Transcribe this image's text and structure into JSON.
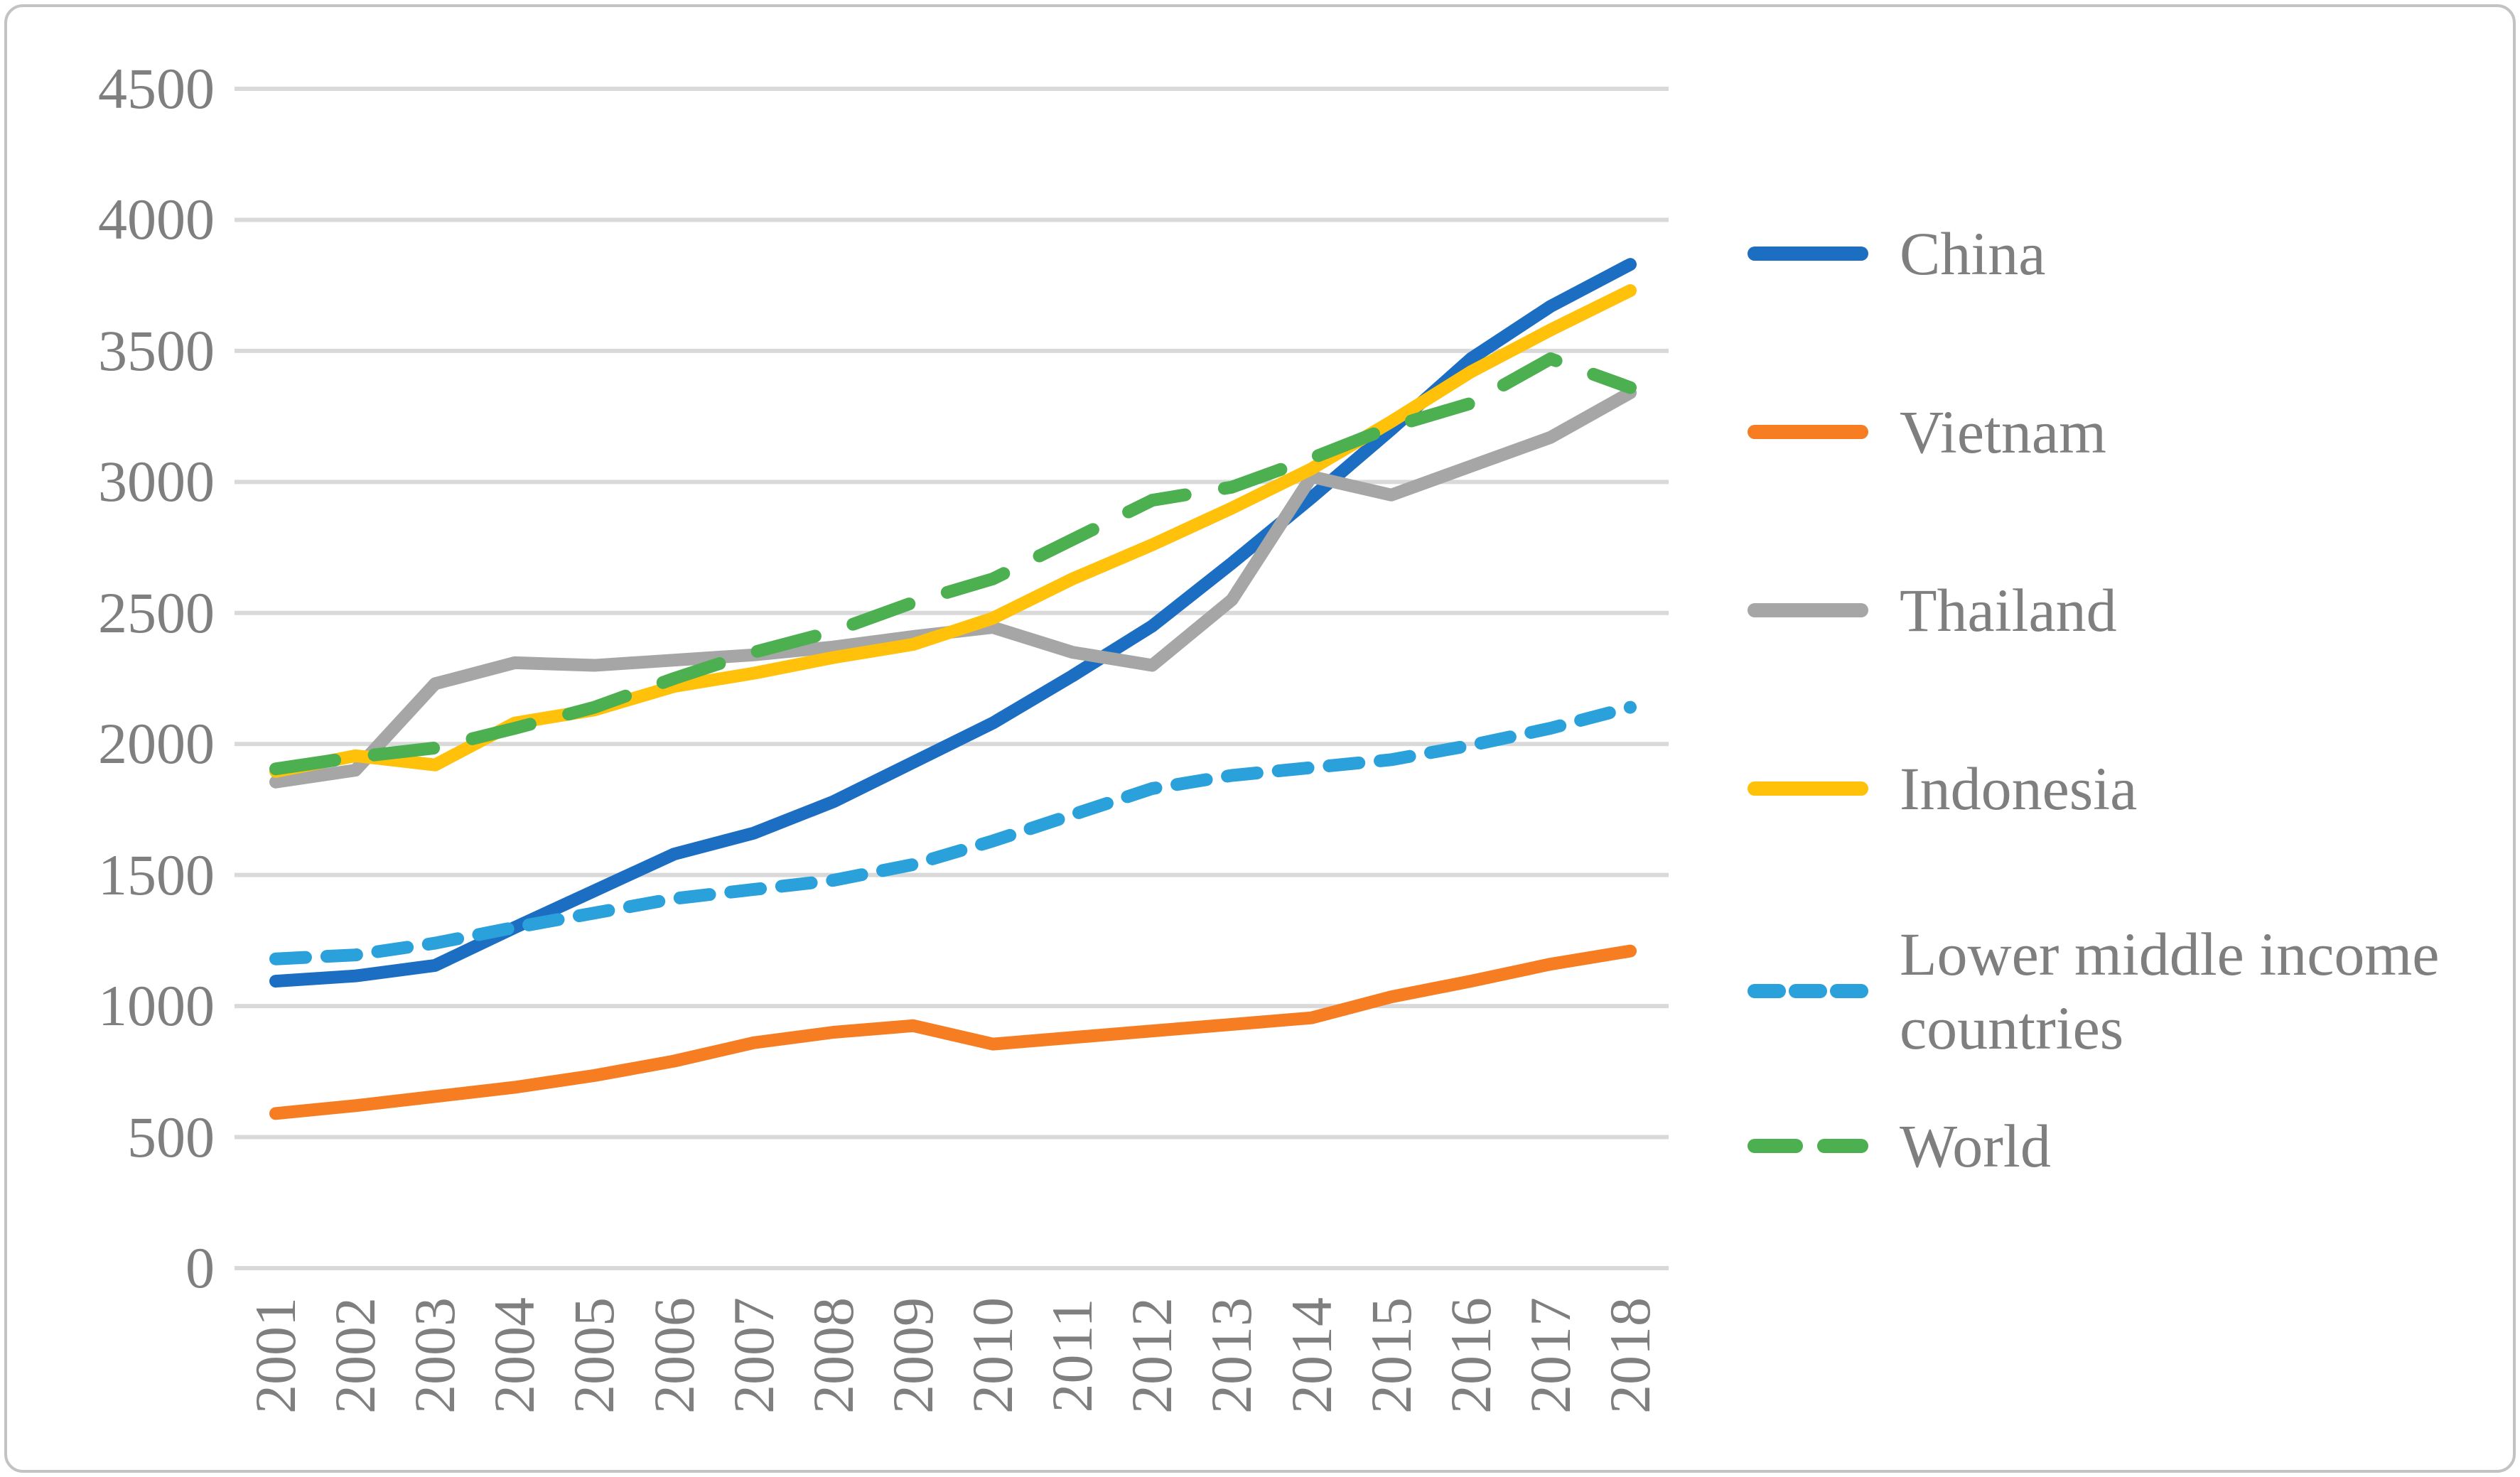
{
  "figure": {
    "background": "#ffffff",
    "border_color": "#c3c3c3"
  },
  "chart_data": {
    "type": "line",
    "title": "",
    "xlabel": "",
    "ylabel": "",
    "x": [
      "2001",
      "2002",
      "2003",
      "2004",
      "2005",
      "2006",
      "2007",
      "2008",
      "2009",
      "2010",
      "2011",
      "2012",
      "2013",
      "2014",
      "2015",
      "2016",
      "2017",
      "2018"
    ],
    "ylim": [
      0,
      4500
    ],
    "ytick_step": 500,
    "yticks": [
      "0",
      "500",
      "1000",
      "1500",
      "2000",
      "2500",
      "3000",
      "3500",
      "4000",
      "4500"
    ],
    "grid": "horizontal",
    "gridline_color": "#d9d9d9",
    "axis_text_color": "#7f7f7f",
    "legend_position": "right",
    "series": [
      {
        "name": "China",
        "color": "#1b6ec2",
        "style": "solid",
        "values": [
          1095,
          1115,
          1155,
          1300,
          1440,
          1580,
          1660,
          1780,
          1930,
          2080,
          2260,
          2450,
          2690,
          2940,
          3200,
          3470,
          3670,
          3830
        ]
      },
      {
        "name": "Vietnam",
        "color": "#f67d22",
        "style": "solid",
        "values": [
          590,
          620,
          655,
          690,
          735,
          790,
          860,
          900,
          925,
          855,
          880,
          905,
          930,
          955,
          1035,
          1095,
          1160,
          1210
        ]
      },
      {
        "name": "Thailand",
        "color": "#a6a6a6",
        "style": "solid",
        "values": [
          1855,
          1900,
          2230,
          2310,
          2300,
          2320,
          2340,
          2370,
          2410,
          2445,
          2350,
          2300,
          2550,
          3020,
          2950,
          3060,
          3170,
          3340
        ]
      },
      {
        "name": "Indonesia",
        "color": "#ffc10a",
        "style": "solid",
        "values": [
          1895,
          1955,
          1920,
          2080,
          2130,
          2220,
          2270,
          2330,
          2380,
          2480,
          2630,
          2760,
          2900,
          3050,
          3230,
          3420,
          3580,
          3730
        ]
      },
      {
        "name": "Lower middle income countries",
        "color": "#2ba1db",
        "style": "dash-short",
        "values": [
          1180,
          1195,
          1240,
          1300,
          1355,
          1410,
          1445,
          1480,
          1540,
          1630,
          1730,
          1830,
          1880,
          1910,
          1940,
          1995,
          2060,
          2140
        ]
      },
      {
        "name": "World",
        "color": "#4caf50",
        "style": "dash-long",
        "values": [
          1905,
          1950,
          1985,
          2060,
          2140,
          2250,
          2350,
          2430,
          2540,
          2630,
          2780,
          2930,
          2980,
          3090,
          3210,
          3300,
          3470,
          3360
        ]
      }
    ]
  },
  "legend": {
    "items": [
      {
        "label": "China"
      },
      {
        "label": "Vietnam"
      },
      {
        "label": "Thailand"
      },
      {
        "label": "Indonesia"
      },
      {
        "label": "Lower middle income countries"
      },
      {
        "label": "World"
      }
    ]
  }
}
